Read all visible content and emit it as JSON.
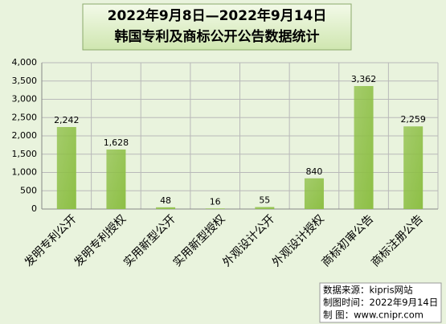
{
  "chart_data": {
    "type": "bar",
    "title": "2022年9月8日—2022年9月14日",
    "subtitle": "韩国专利及商标公开公告数据统计",
    "categories": [
      "发明专利公开",
      "发明专利授权",
      "实用新型公开",
      "实用新型授权",
      "外观设计公开",
      "外观设计授权",
      "商标初审公告",
      "商标注册公告"
    ],
    "values": [
      2242,
      1628,
      48,
      16,
      55,
      840,
      3362,
      2259
    ],
    "value_labels": [
      "2,242",
      "1,628",
      "48",
      "16",
      "55",
      "840",
      "3,362",
      "2,259"
    ],
    "color": "#8dbf45",
    "ylim": [
      0,
      4000
    ],
    "yticks": [
      0,
      500,
      {
        "value": 1000,
        "label": "1,000"
      },
      {
        "value": 1500,
        "label": "1,500"
      },
      {
        "value": 2000,
        "label": "2,000"
      },
      {
        "value": 2500,
        "label": "2,500"
      },
      {
        "value": 3000,
        "label": "3,000"
      },
      {
        "value": 3500,
        "label": "3,500"
      },
      {
        "value": 4000,
        "label": "4,000"
      }
    ],
    "grid": true,
    "source_notes": [
      "数据来源：kipris网站",
      "制图时间：2022年9月14日",
      "制      图：www.cnipr.com"
    ]
  }
}
